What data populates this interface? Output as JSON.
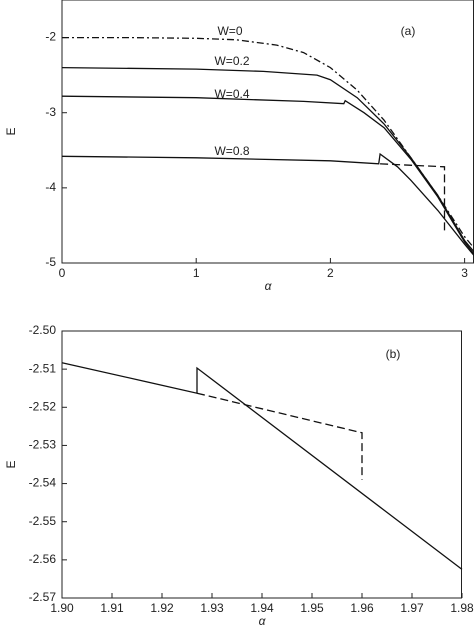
{
  "chart_data": [
    {
      "type": "line",
      "panel_label": "(a)",
      "x_label": "α",
      "y_label": "E",
      "xlim": [
        0,
        3.07
      ],
      "ylim": [
        -5,
        -1.5
      ],
      "xticks": [
        0,
        1,
        2,
        3
      ],
      "yticks": [
        -2,
        -3,
        -4,
        -5
      ],
      "series": [
        {
          "name": "W=0",
          "line_style": "dashdot",
          "x": [
            0,
            0.5,
            1.0,
            1.3,
            1.6,
            1.8,
            2.0,
            2.2,
            2.4,
            2.6,
            2.8,
            3.0,
            3.07
          ],
          "values": [
            -2.0,
            -2.0,
            -2.01,
            -2.03,
            -2.1,
            -2.2,
            -2.4,
            -2.7,
            -3.1,
            -3.6,
            -4.1,
            -4.65,
            -4.8
          ]
        },
        {
          "name": "W=0.2",
          "line_style": "solid",
          "x": [
            0,
            1.0,
            1.5,
            1.9,
            2.0,
            2.2,
            2.4,
            2.6,
            2.8,
            3.0,
            3.07
          ],
          "values": [
            -2.4,
            -2.42,
            -2.45,
            -2.5,
            -2.56,
            -2.8,
            -3.15,
            -3.6,
            -4.1,
            -4.7,
            -4.85
          ]
        },
        {
          "name": "W=0.4",
          "line_style": "solid",
          "x": [
            0,
            1.0,
            1.8,
            2.1,
            2.11,
            2.25,
            2.4,
            2.6,
            2.8,
            3.0,
            3.07
          ],
          "values": [
            -2.78,
            -2.8,
            -2.85,
            -2.88,
            -2.84,
            -3.0,
            -3.2,
            -3.62,
            -4.12,
            -4.72,
            -4.88
          ]
        },
        {
          "name": "W=0.8",
          "line_style": "solid",
          "x": [
            0,
            1.0,
            2.0,
            2.36,
            2.37,
            2.5,
            2.6,
            2.8,
            3.0,
            3.07
          ],
          "values": [
            -3.58,
            -3.6,
            -3.64,
            -3.68,
            -3.55,
            -3.72,
            -3.9,
            -4.3,
            -4.75,
            -4.9
          ]
        },
        {
          "line_style": "dashed",
          "x": [
            2.37,
            2.85,
            2.85
          ],
          "values": [
            -3.68,
            -3.72,
            -4.6
          ]
        }
      ]
    },
    {
      "type": "line",
      "panel_label": "(b)",
      "x_label": "α",
      "y_label": "E",
      "xlim": [
        1.9,
        1.98
      ],
      "ylim": [
        -2.57,
        -2.5
      ],
      "xticks": [
        {
          "value": 1.9,
          "label": "1.90"
        },
        1.91,
        1.92,
        1.93,
        1.94,
        1.95,
        1.96,
        1.97,
        1.98
      ],
      "yticks": [
        {
          "value": -2.5,
          "label": "-2.50"
        },
        -2.51,
        -2.52,
        -2.53,
        -2.54,
        -2.55,
        -2.56,
        -2.57
      ],
      "series": [
        {
          "line_style": "solid",
          "x": [
            1.9,
            1.927,
            1.927,
            1.98
          ],
          "values": [
            -2.5083,
            -2.5163,
            -2.5097,
            -2.5625
          ]
        },
        {
          "line_style": "dashed",
          "x": [
            1.927,
            1.96,
            1.96
          ],
          "values": [
            -2.5163,
            -2.5267,
            -2.539
          ]
        }
      ]
    }
  ]
}
